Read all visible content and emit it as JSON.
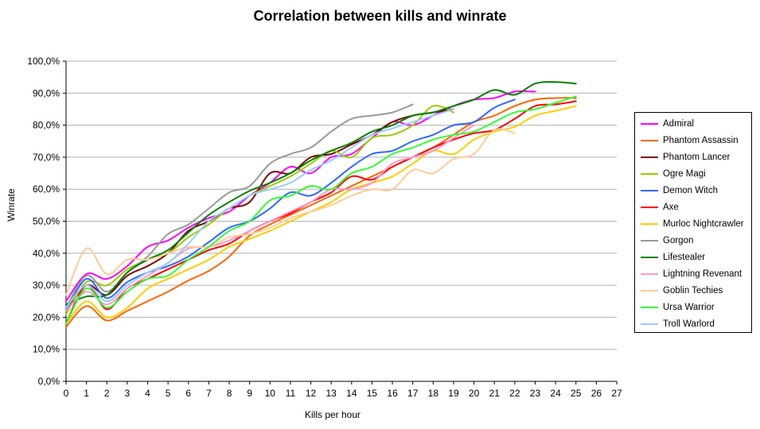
{
  "chart_data": {
    "type": "line",
    "title": "Correlation between kills and winrate",
    "xlabel": "Kills per hour",
    "ylabel": "Winrate",
    "xlim": [
      0,
      27
    ],
    "ylim": [
      0,
      100
    ],
    "x_ticks": [
      "0",
      "1",
      "2",
      "3",
      "4",
      "5",
      "6",
      "7",
      "8",
      "9",
      "10",
      "11",
      "12",
      "13",
      "14",
      "15",
      "16",
      "17",
      "18",
      "19",
      "20",
      "21",
      "22",
      "23",
      "24",
      "25",
      "26",
      "27"
    ],
    "y_ticks": [
      "0,0%",
      "10,0%",
      "20,0%",
      "30,0%",
      "40,0%",
      "50,0%",
      "60,0%",
      "70,0%",
      "80,0%",
      "90,0%",
      "100,0%"
    ],
    "grid": "horizontal",
    "legend_position": "right",
    "series": [
      {
        "name": "Admiral",
        "color": "#ff00ff",
        "x": [
          0,
          1,
          2,
          3,
          4,
          5,
          6,
          7,
          8,
          9,
          10,
          11,
          12,
          13,
          14,
          15,
          16,
          17,
          18,
          19,
          20,
          21,
          22,
          23
        ],
        "values": [
          25,
          33.5,
          32,
          36,
          42,
          44,
          48,
          51,
          53,
          58,
          62,
          67,
          65,
          70,
          71,
          76,
          81,
          80,
          83,
          86,
          88,
          88.5,
          90.5,
          90.5
        ]
      },
      {
        "name": "Phantom Assassin",
        "color": "#ff6600",
        "x": [
          0,
          1,
          2,
          3,
          4,
          5,
          6,
          7,
          8,
          9,
          10,
          11,
          12,
          13,
          14,
          15,
          16,
          17,
          18,
          19,
          20,
          21,
          22,
          23,
          24,
          25
        ],
        "values": [
          17,
          23.5,
          19,
          22,
          25,
          28,
          31.5,
          34.5,
          39,
          45.5,
          49,
          52,
          55,
          58,
          61,
          64,
          67,
          70,
          73,
          77,
          81,
          83,
          86,
          88,
          88.5,
          88.5
        ]
      },
      {
        "name": "Phantom Lancer",
        "color": "#800000",
        "x": [
          0,
          1,
          2,
          3,
          4,
          5,
          6,
          7,
          8,
          9,
          10,
          11,
          12,
          13,
          14,
          15,
          16,
          17,
          18,
          19
        ],
        "values": [
          22,
          30,
          27,
          33,
          36,
          40,
          47,
          50,
          54,
          56,
          65,
          65,
          70,
          71,
          74,
          77,
          81,
          83,
          84,
          85
        ]
      },
      {
        "name": "Ogre Magi",
        "color": "#99cc00",
        "x": [
          0,
          1,
          2,
          3,
          4,
          5,
          6,
          7,
          8,
          9,
          10,
          11,
          12,
          13,
          14,
          15,
          16,
          17,
          18,
          19
        ],
        "values": [
          21,
          31,
          30,
          35,
          38,
          40,
          45,
          49,
          54,
          58,
          61,
          64,
          68,
          72,
          70,
          76,
          77,
          80,
          86,
          84
        ]
      },
      {
        "name": "Demon Witch",
        "color": "#3366ff",
        "x": [
          0,
          1,
          2,
          3,
          4,
          5,
          6,
          7,
          8,
          9,
          10,
          11,
          12,
          13,
          14,
          15,
          16,
          17,
          18,
          19,
          20,
          21,
          22
        ],
        "values": [
          22,
          32,
          26,
          31,
          34,
          36,
          39,
          43.5,
          48,
          50,
          54,
          59,
          58,
          62,
          67,
          71,
          72,
          75,
          77,
          80,
          81,
          85.5,
          88
        ]
      },
      {
        "name": "Axe",
        "color": "#ff0000",
        "x": [
          0,
          1,
          2,
          3,
          4,
          5,
          6,
          7,
          8,
          9,
          10,
          11,
          12,
          13,
          14,
          15,
          16,
          17,
          18,
          19,
          20,
          21,
          22,
          23,
          24,
          25
        ],
        "values": [
          18,
          30,
          22.5,
          29,
          32,
          35,
          38,
          41,
          43,
          47,
          50,
          52.5,
          56,
          59,
          64,
          63,
          67,
          70,
          73,
          75.5,
          77.5,
          78.5,
          82,
          86,
          86.5,
          87.5
        ]
      },
      {
        "name": "Murloc Nightcrawler",
        "color": "#ffcc00",
        "x": [
          0,
          1,
          2,
          3,
          4,
          5,
          6,
          7,
          8,
          9,
          10,
          11,
          12,
          13,
          14,
          15,
          16,
          17,
          18,
          19,
          20,
          21,
          22,
          23,
          24,
          25
        ],
        "values": [
          18,
          25,
          20,
          23,
          29,
          32,
          35,
          38,
          42,
          44.5,
          47,
          50,
          53,
          56,
          60,
          62,
          64,
          68,
          72,
          71,
          75.5,
          78,
          79.5,
          83,
          84.5,
          86
        ]
      },
      {
        "name": "Gorgon",
        "color": "#999999",
        "x": [
          0,
          1,
          2,
          3,
          4,
          5,
          6,
          7,
          8,
          9,
          10,
          11,
          12,
          13,
          14,
          15,
          16,
          17
        ],
        "values": [
          23,
          33,
          28,
          34,
          39,
          46,
          49,
          54,
          59,
          61,
          68,
          71,
          73,
          78,
          82,
          83,
          84,
          86.5
        ]
      },
      {
        "name": "Lifestealer",
        "color": "#008000",
        "x": [
          0,
          1,
          2,
          3,
          4,
          5,
          6,
          7,
          8,
          9,
          10,
          11,
          12,
          13,
          14,
          15,
          16,
          17,
          18,
          19,
          20,
          21,
          22,
          23,
          24,
          25
        ],
        "values": [
          24,
          26.5,
          27,
          34,
          38,
          41,
          46.5,
          52,
          56,
          59.5,
          62,
          65,
          69,
          72,
          74.5,
          78,
          80,
          83,
          84,
          86,
          88,
          91,
          89.5,
          93,
          93.5,
          93
        ]
      },
      {
        "name": "Lightning Revenant",
        "color": "#ff99cc",
        "x": [
          0,
          1,
          2,
          3,
          4,
          5,
          6,
          7,
          8,
          9,
          10,
          11,
          12,
          13,
          14,
          15,
          16,
          17,
          18,
          19,
          20
        ],
        "values": [
          22,
          28,
          24,
          29,
          33,
          37,
          41.5,
          42,
          44,
          47,
          50,
          53,
          56,
          60,
          60,
          62,
          68,
          70,
          72,
          76,
          80
        ]
      },
      {
        "name": "Goblin Techies",
        "color": "#ffcc99",
        "x": [
          0,
          1,
          2,
          3,
          4,
          5,
          6,
          7,
          8,
          9,
          10,
          11,
          12,
          13,
          14,
          15,
          16,
          17,
          18,
          19,
          20,
          21,
          22
        ],
        "values": [
          27,
          41.5,
          33.5,
          38,
          38,
          40,
          42,
          42,
          45,
          46,
          48,
          51,
          53,
          55,
          58,
          60,
          60,
          66,
          65,
          69.5,
          71,
          78.5,
          77.5
        ]
      },
      {
        "name": "Ursa Warrior",
        "color": "#33ff33",
        "x": [
          0,
          1,
          2,
          3,
          4,
          5,
          6,
          7,
          8,
          9,
          10,
          11,
          12,
          13,
          14,
          15,
          16,
          17,
          18,
          19,
          20,
          21,
          22,
          23,
          24,
          25
        ],
        "values": [
          18,
          29,
          23,
          28,
          32,
          33,
          38,
          42,
          47,
          50,
          56.5,
          58,
          61,
          60,
          65,
          67,
          71,
          73,
          75.5,
          77,
          78,
          81,
          84,
          85,
          87,
          89
        ]
      },
      {
        "name": "Troll Warlord",
        "color": "#99ccff",
        "x": [
          0,
          1,
          2,
          3,
          4,
          5,
          6,
          7,
          8,
          9,
          10,
          11,
          12,
          13,
          14,
          15,
          16,
          17,
          18,
          19
        ],
        "values": [
          23,
          30,
          25,
          30,
          34,
          37,
          43,
          50,
          54,
          58,
          60,
          62,
          66,
          69,
          73,
          77,
          79,
          81,
          83,
          85
        ]
      }
    ]
  }
}
